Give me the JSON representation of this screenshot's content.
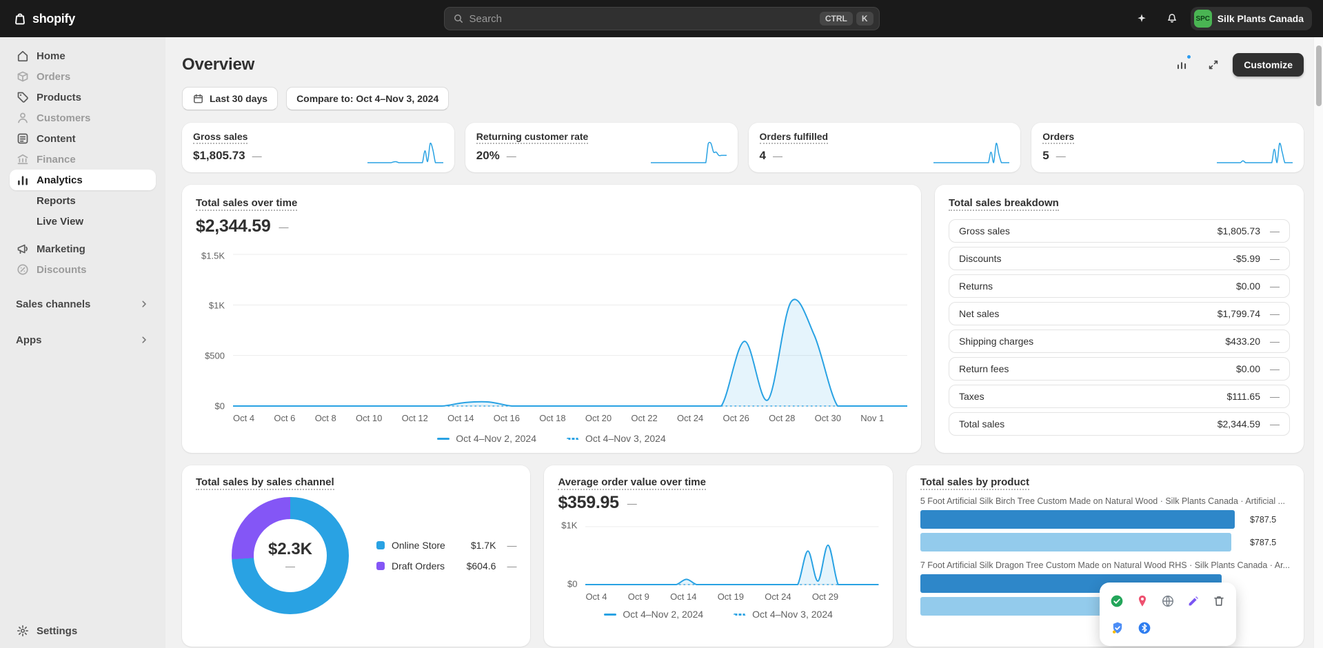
{
  "ui": {
    "dash": "—"
  },
  "colors": {
    "accent_blue": "#29a2e3",
    "bar_dark": "#2e87c9",
    "bar_light": "#93cbec",
    "donut_blue": "#29a2e3",
    "donut_purple": "#8456f6",
    "topbar": "#1a1a1a",
    "customize_button": "#303030",
    "avatar_green": "#4ab553"
  },
  "icons": {
    "topbar": [
      "shopify-bag-icon",
      "search-icon",
      "sidekick-icon",
      "bell-icon"
    ],
    "sidebar": [
      "home-icon",
      "orders-icon",
      "products-icon",
      "customers-icon",
      "content-icon",
      "finance-icon",
      "analytics-icon",
      "marketing-icon",
      "discounts-icon",
      "gear-icon",
      "chevron-right-icon"
    ],
    "header": [
      "insights-icon",
      "fullscreen-icon",
      "calendar-icon"
    ],
    "overlay": [
      "check-icon",
      "pin-icon",
      "globe-icon",
      "pencil-icon",
      "trash-icon",
      "shield-icon",
      "bluetooth-icon"
    ]
  },
  "topbar": {
    "brand": "shopify",
    "search": {
      "placeholder": "Search",
      "keys": [
        "CTRL",
        "K"
      ]
    },
    "store": {
      "initials": "SPC",
      "name": "Silk Plants Canada"
    }
  },
  "sidebar": {
    "items": [
      {
        "label": "Home"
      },
      {
        "label": "Orders"
      },
      {
        "label": "Products"
      },
      {
        "label": "Customers"
      },
      {
        "label": "Content"
      },
      {
        "label": "Finance"
      },
      {
        "label": "Analytics"
      },
      {
        "label": "Reports"
      },
      {
        "label": "Live View"
      },
      {
        "label": "Marketing"
      },
      {
        "label": "Discounts"
      }
    ],
    "sections": [
      {
        "label": "Sales channels"
      },
      {
        "label": "Apps"
      }
    ],
    "settings_label": "Settings"
  },
  "page": {
    "title": "Overview",
    "customize_label": "Customize",
    "filters": {
      "date_range": "Last 30 days",
      "compare": "Compare to: Oct 4–Nov 3, 2024"
    }
  },
  "kpis": [
    {
      "label": "Gross sales",
      "value": "$1,805.73",
      "spark": [
        0,
        0,
        0,
        0,
        0,
        0,
        0,
        0,
        0,
        0,
        4,
        5,
        0,
        0,
        0,
        0,
        0,
        0,
        0,
        0,
        0,
        0,
        62,
        6,
        100,
        68,
        0,
        0,
        0,
        0
      ]
    },
    {
      "label": "Returning customer rate",
      "value": "20%",
      "spark": [
        0,
        0,
        0,
        0,
        0,
        0,
        0,
        0,
        0,
        0,
        0,
        0,
        0,
        0,
        0,
        0,
        0,
        0,
        0,
        0,
        0,
        0,
        100,
        100,
        55,
        55,
        38,
        38,
        38,
        38
      ]
    },
    {
      "label": "Orders fulfilled",
      "value": "4",
      "spark": [
        0,
        0,
        0,
        0,
        0,
        0,
        0,
        0,
        0,
        0,
        0,
        0,
        0,
        0,
        0,
        0,
        0,
        0,
        0,
        0,
        0,
        0,
        55,
        0,
        100,
        45,
        0,
        0,
        0,
        0
      ]
    },
    {
      "label": "Orders",
      "value": "5",
      "spark": [
        0,
        0,
        0,
        0,
        0,
        0,
        0,
        0,
        0,
        0,
        10,
        0,
        0,
        0,
        0,
        0,
        0,
        0,
        0,
        0,
        0,
        0,
        70,
        0,
        100,
        55,
        0,
        0,
        0,
        0
      ]
    }
  ],
  "tsot": {
    "title": "Total sales over time",
    "value": "$2,344.59",
    "ymax": 1500,
    "grid": [
      0,
      500,
      1000,
      1500
    ],
    "y_ticks": [
      "$1.5K",
      "$1K",
      "$500",
      "$0"
    ],
    "x_ticks": [
      "Oct 4",
      "Oct 6",
      "Oct 8",
      "Oct 10",
      "Oct 12",
      "Oct 14",
      "Oct 16",
      "Oct 18",
      "Oct 20",
      "Oct 22",
      "Oct 24",
      "Oct 26",
      "Oct 28",
      "Oct 30",
      "Nov 1"
    ],
    "series": [
      0,
      0,
      0,
      0,
      0,
      0,
      0,
      0,
      0,
      0,
      35,
      40,
      0,
      0,
      0,
      0,
      0,
      0,
      0,
      0,
      0,
      0,
      640,
      60,
      1030,
      700,
      0,
      0,
      0,
      0
    ],
    "compare": [
      0,
      0,
      0,
      0,
      0,
      0,
      0,
      0,
      0,
      0,
      0,
      0,
      0,
      0,
      0,
      0,
      0,
      0,
      0,
      0,
      0,
      0,
      0,
      0,
      0,
      0,
      0,
      0,
      0,
      0
    ],
    "legend": [
      {
        "label": "Oct 4–Nov 2, 2024",
        "style": "solid"
      },
      {
        "label": "Oct 4–Nov 3, 2024",
        "style": "dotted"
      }
    ]
  },
  "breakdown": {
    "title": "Total sales breakdown",
    "rows": [
      {
        "label": "Gross sales",
        "value": "$1,805.73"
      },
      {
        "label": "Discounts",
        "value": "-$5.99"
      },
      {
        "label": "Returns",
        "value": "$0.00"
      },
      {
        "label": "Net sales",
        "value": "$1,799.74"
      },
      {
        "label": "Shipping charges",
        "value": "$433.20"
      },
      {
        "label": "Return fees",
        "value": "$0.00"
      },
      {
        "label": "Taxes",
        "value": "$111.65"
      },
      {
        "label": "Total sales",
        "value": "$2,344.59"
      }
    ]
  },
  "channel": {
    "title": "Total sales by sales channel",
    "center_value": "$2.3K",
    "slices": [
      74,
      26
    ],
    "legend": [
      {
        "label": "Online Store",
        "value": "$1.7K",
        "color": "#29a2e3"
      },
      {
        "label": "Draft Orders",
        "value": "$604.6",
        "color": "#8456f6"
      }
    ]
  },
  "aov": {
    "title": "Average order value over time",
    "value": "$359.95",
    "ymax": 1000,
    "grid": [
      0,
      1000
    ],
    "y_ticks": [
      "$1K",
      "$0"
    ],
    "x_ticks": [
      "Oct 4",
      "Oct 9",
      "Oct 14",
      "Oct 19",
      "Oct 24",
      "Oct 29"
    ],
    "series": [
      0,
      0,
      0,
      0,
      0,
      0,
      0,
      0,
      0,
      0,
      90,
      0,
      0,
      0,
      0,
      0,
      0,
      0,
      0,
      0,
      0,
      0,
      580,
      60,
      680,
      0,
      0,
      0,
      0,
      0
    ],
    "compare": [
      0,
      0,
      0,
      0,
      0,
      0,
      0,
      0,
      0,
      0,
      0,
      0,
      0,
      0,
      0,
      0,
      0,
      0,
      0,
      0,
      0,
      0,
      0,
      0,
      0,
      0,
      0,
      0,
      0,
      0
    ],
    "legend": [
      {
        "label": "Oct 4–Nov 2, 2024",
        "style": "solid"
      },
      {
        "label": "Oct 4–Nov 3, 2024",
        "style": "dotted"
      }
    ]
  },
  "products": {
    "title": "Total sales by product",
    "items": [
      {
        "name": "5 Foot Artificial Silk Birch Tree Custom Made on Natural Wood · Silk Plants Canada · Artificial ...",
        "bars": [
          {
            "pct": 97,
            "value": "$787.5"
          },
          {
            "pct": 96,
            "value": "$787.5"
          }
        ]
      },
      {
        "name": "7 Foot Artificial Silk Dragon Tree Custom Made on Natural Wood RHS · Silk Plants Canada · Ar...",
        "bars": [
          {
            "pct": 93,
            "value": ""
          },
          {
            "pct": 75,
            "value": ""
          }
        ]
      }
    ]
  }
}
